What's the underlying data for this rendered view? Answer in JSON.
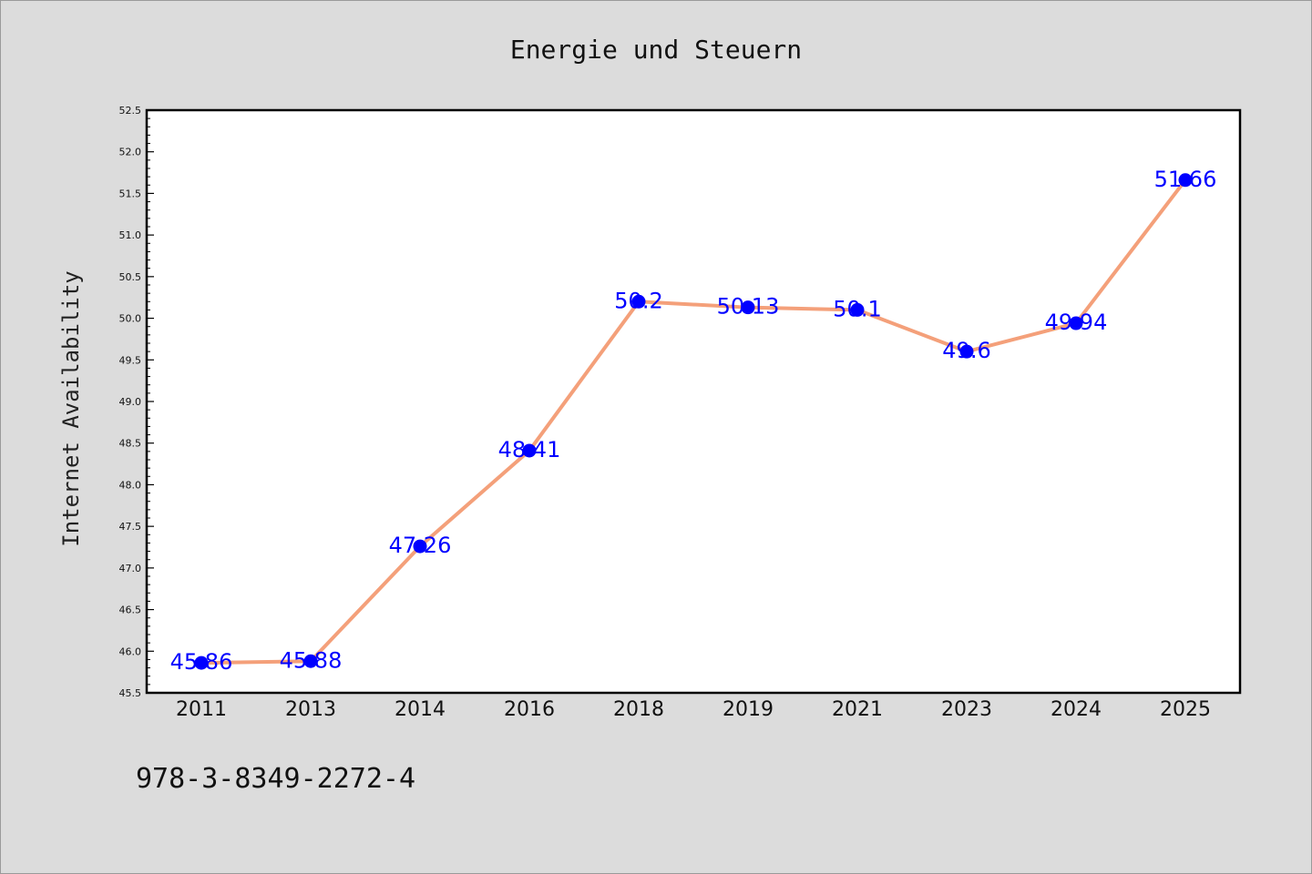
{
  "chart_data": {
    "type": "line",
    "title": "Energie und Steuern",
    "xlabel": "",
    "ylabel": "Internet Availability",
    "categories": [
      "2011",
      "2013",
      "2014",
      "2016",
      "2018",
      "2019",
      "2021",
      "2023",
      "2024",
      "2025"
    ],
    "series": [
      {
        "values": [
          45.86,
          45.88,
          47.26,
          48.41,
          50.2,
          50.13,
          50.1,
          49.6,
          49.94,
          51.66
        ],
        "data_labels": [
          "45.86",
          "45.88",
          "47.26",
          "48.41",
          "50.2",
          "50.13",
          "50.1",
          "49.6",
          "49.94",
          "51.66"
        ],
        "line_color": "#f4a07a",
        "marker_color": "#0000ff"
      }
    ],
    "ylim": [
      45.5,
      52.5
    ],
    "yticks": [
      "45.5",
      "46.0",
      "46.5",
      "47.0",
      "47.5",
      "48.0",
      "48.5",
      "49.0",
      "49.5",
      "50.0",
      "50.5",
      "51.0",
      "51.5",
      "52.0",
      "52.5"
    ],
    "grid": false,
    "legend": "none"
  },
  "annotation": "978-3-8349-2272-4",
  "colors": {
    "background": "#dcdcdc",
    "plot_background": "#ffffff",
    "label_color": "#0000ff"
  }
}
